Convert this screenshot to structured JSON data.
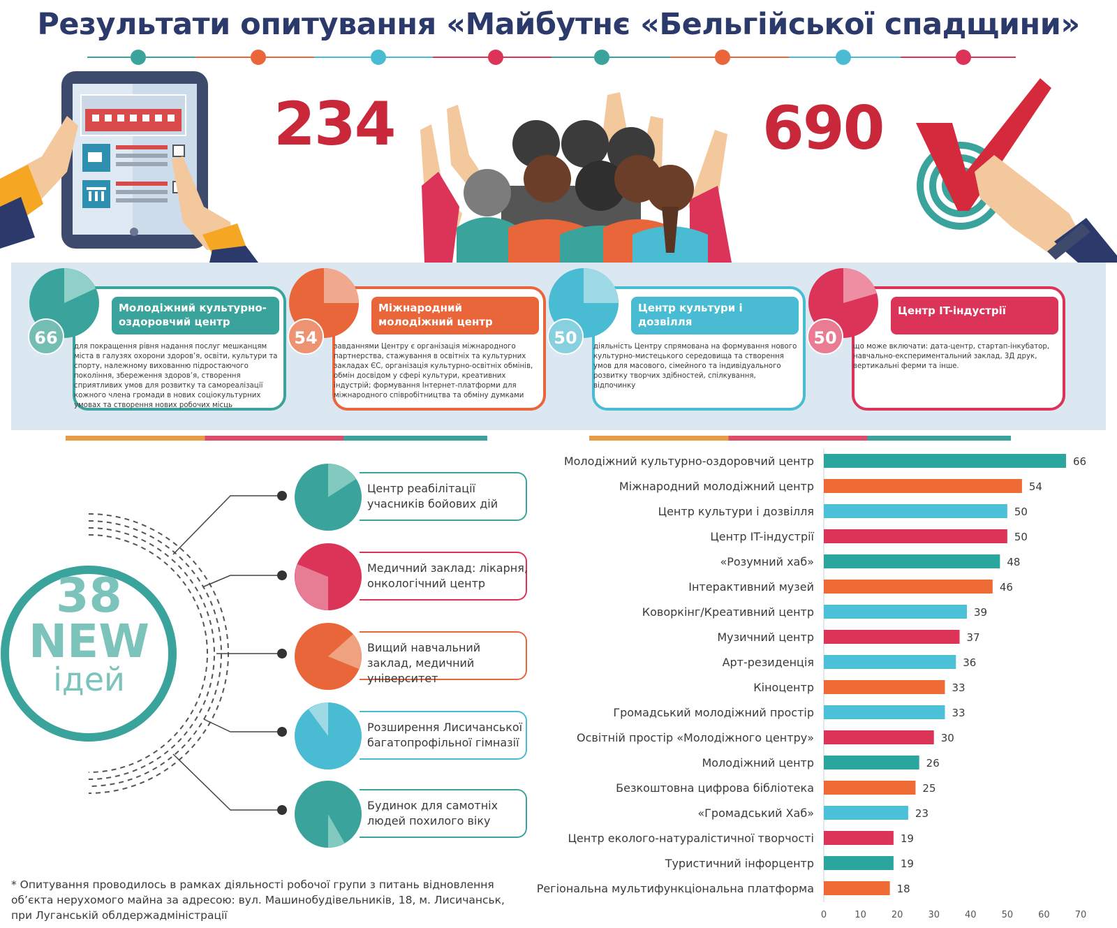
{
  "header": {
    "title": "Результати опитування «Майбутнє «Бельгійської спадщини»"
  },
  "stats": {
    "respondents": "234",
    "votes": "690"
  },
  "colors": {
    "teal": "#3aa39b",
    "orange": "#e8663a",
    "cyan": "#49bcd3",
    "red": "#dc3359",
    "navy": "#2b3a6b",
    "big_number": "#c9273a"
  },
  "cards": [
    {
      "value": "66",
      "title": "Молодіжний культурно-оздоровчий центр",
      "desc": "для покращення рівня надання послуг мешканцям міста в галузях охорони здоров’я, освіти, культури та спорту, належному вихованню підростаючого покоління, збереження здоров’я, створення сприятливих умов для розвитку та самореалізації кожного члена громади в нових соціокультурних умовах та створення нових робочих місць",
      "color": "#3aa39b"
    },
    {
      "value": "54",
      "title": "Міжнародний молодіжний центр",
      "desc": "завданнями Центру є організація міжнародного партнерства, стажування в освітніх та культурних закладах ЄС, організація культурно-освітніх обмінів, обмін досвідом у сфері культури, креативних індустрій; формування Інтернет-платформи для міжнародного співробітництва та обміну думками",
      "color": "#e8663a"
    },
    {
      "value": "50",
      "title": "Центр культури і дозвілля",
      "desc": "діяльність Центру спрямована на формування нового культурно-мистецького середовища та створення умов для масового, сімейного та індивідуального розвитку творчих здібностей, спілкування, відпочинку",
      "color": "#49bcd3"
    },
    {
      "value": "50",
      "title": "Центр IT-індустрії",
      "desc": "що може включати: дата-центр, стартап-інкубатор, навчально-експериментальний заклад, 3Д друк, вертикальні ферми та інше.",
      "color": "#dc3359"
    }
  ],
  "new_ideas": {
    "count": "38",
    "word": "NEW",
    "sub": "ідей",
    "items": [
      {
        "text": "Центр реабілітації учасників бойових дій",
        "color": "#3aa39b"
      },
      {
        "text": "Медичний заклад: лікарня, онкологічний центр",
        "color": "#dc3359"
      },
      {
        "text": "Вищий навчальний заклад, медичний університет",
        "color": "#e8663a"
      },
      {
        "text": "Розширення Лисичанської багатопрофільної гімназії",
        "color": "#49bcd3"
      },
      {
        "text": "Будинок для самотніх людей похилого віку",
        "color": "#3aa39b"
      }
    ]
  },
  "chart_data": {
    "type": "bar",
    "orientation": "horizontal",
    "title": "",
    "xlabel": "",
    "ylabel": "",
    "xlim": [
      0,
      70
    ],
    "ticks": [
      "0",
      "10",
      "20",
      "30",
      "40",
      "50",
      "60",
      "70"
    ],
    "categories": [
      "Молодіжний культурно-оздоровчий центр",
      "Міжнародний молодіжний центр",
      "Центр культури і дозвілля",
      "Центр IT-індустрії",
      "«Розумний хаб»",
      "Інтерактивний музей",
      "Коворкінг/Креативний центр",
      "Музичний центр",
      "Арт-резиденція",
      "Кіноцентр",
      "Громадський молодіжний простір",
      "Освітній простір «Молодіжного центру»",
      "Молодіжний центр",
      "Безкоштовна цифрова бібліотека",
      "«Громадський Хаб»",
      "Центр еколого-натуралістичної творчості",
      "Туристичний інфорцентр",
      "Регіональна мультифункціональна платформа"
    ],
    "values": [
      66,
      54,
      50,
      50,
      48,
      46,
      39,
      37,
      36,
      33,
      33,
      30,
      26,
      25,
      23,
      19,
      19,
      18
    ],
    "colors": [
      "#2aa69e",
      "#ee6b36",
      "#4cc0d6",
      "#dc3359",
      "#2aa69e",
      "#ee6b36",
      "#4cc0d6",
      "#dc3359",
      "#4cc0d6",
      "#ee6b36",
      "#4cc0d6",
      "#dc3359",
      "#2aa69e",
      "#ee6b36",
      "#4cc0d6",
      "#dc3359",
      "#2aa69e",
      "#ee6b36"
    ],
    "grid": false,
    "data_labels": true
  },
  "footnote": "* Опитування проводилось в рамках діяльності робочої групи з питань відновлення об’єкта нерухомого майна за адресою: вул. Машинобудівельників, 18, м. Лисичанськ, при Луганській облдержадміністрації"
}
